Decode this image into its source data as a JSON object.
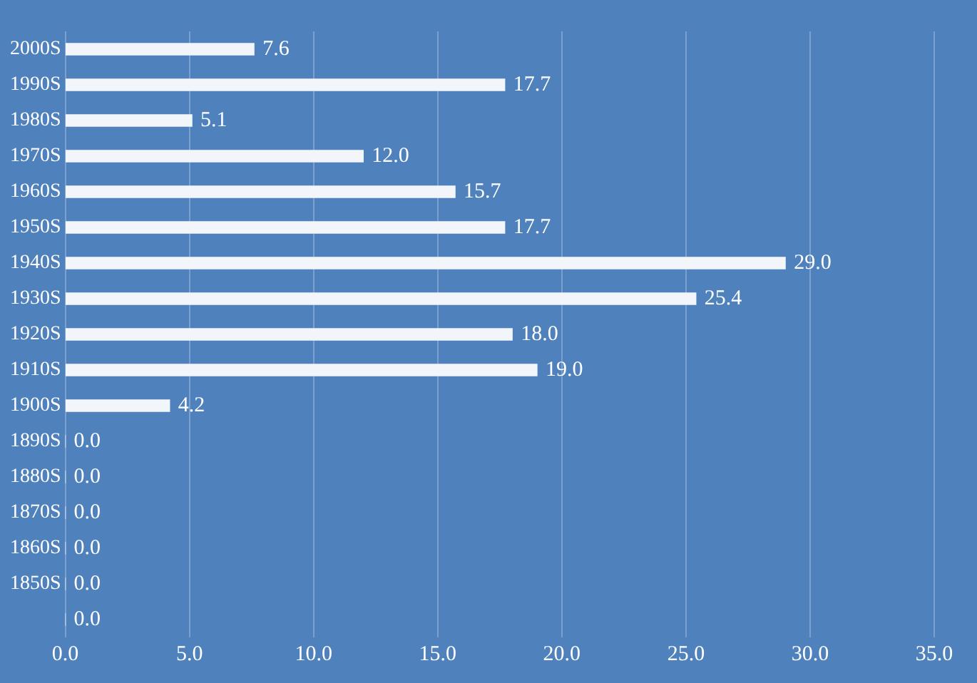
{
  "chart_data": {
    "type": "bar",
    "orientation": "horizontal",
    "categories": [
      "2000S",
      "1990S",
      "1980S",
      "1970S",
      "1960S",
      "1950S",
      "1940S",
      "1930S",
      "1920S",
      "1910S",
      "1900S",
      "1890S",
      "1880S",
      "1870S",
      "1860S",
      "1850S",
      null
    ],
    "values": [
      7.6,
      17.7,
      5.1,
      12.0,
      15.7,
      17.7,
      29.0,
      25.4,
      18.0,
      19.0,
      4.2,
      0,
      0,
      0,
      0,
      0,
      0
    ],
    "value_labels": [
      "7.6",
      "17.7",
      "5.1",
      "12.0",
      "15.7",
      "17.7",
      "29.0",
      "25.4",
      "18.0",
      "19.0",
      "4.2",
      "0.0",
      "0.0",
      "0.0",
      "0.0",
      "0.0",
      "0.0"
    ],
    "color": "#f2f5fa",
    "xlim": [
      0,
      35
    ],
    "xticks": [
      {
        "value": 0,
        "label": "0.0"
      },
      {
        "value": 5,
        "label": "5.0"
      },
      {
        "value": 10,
        "label": "10.0"
      },
      {
        "value": 15,
        "label": "15.0"
      },
      {
        "value": 20,
        "label": "20.0"
      },
      {
        "value": 25,
        "label": "25.0"
      },
      {
        "value": 30,
        "label": "30.0"
      },
      {
        "value": 35,
        "label": "35.0"
      }
    ],
    "grid": "x",
    "legend": false
  }
}
